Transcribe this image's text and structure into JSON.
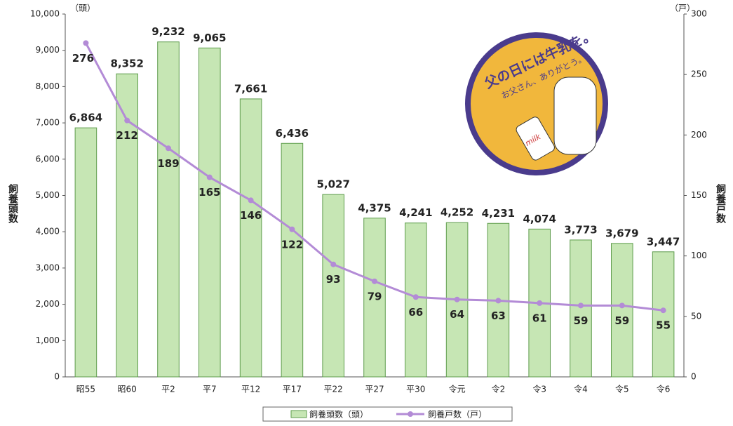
{
  "chart_data": {
    "type": "bar",
    "ylabel": "飼養頭数",
    "y2label": "飼養戸数",
    "y_unit": "（頭）",
    "y2_unit": "（戸）",
    "categories": [
      "昭55",
      "昭60",
      "平2",
      "平7",
      "平12",
      "平17",
      "平22",
      "平27",
      "平30",
      "令元",
      "令2",
      "令3",
      "令4",
      "令5",
      "令6"
    ],
    "series": [
      {
        "name": "飼養頭数（頭）",
        "type": "bar",
        "color": "#c6e6b4",
        "edge": "#5e9c4c",
        "values": [
          6864,
          8352,
          9232,
          9065,
          7661,
          6436,
          5027,
          4375,
          4241,
          4252,
          4231,
          4074,
          3773,
          3679,
          3447
        ],
        "value_labels": [
          "6,864",
          "8,352",
          "9,232",
          "9,065",
          "7,661",
          "6,436",
          "5,027",
          "4,375",
          "4,241",
          "4,252",
          "4,231",
          "4,074",
          "3,773",
          "3,679",
          "3,447"
        ]
      },
      {
        "name": "飼養戸数（戸）",
        "type": "line",
        "axis": "y2",
        "color": "#b38bd6",
        "values": [
          276,
          212,
          189,
          165,
          146,
          122,
          93,
          79,
          66,
          64,
          63,
          61,
          59,
          59,
          55
        ]
      }
    ],
    "ylim": [
      0,
      10000
    ],
    "yticks": [
      0,
      {
        "value": 1000,
        "label": "1,000"
      },
      {
        "value": 2000,
        "label": "2,000"
      },
      {
        "value": 3000,
        "label": "3,000"
      },
      {
        "value": 4000,
        "label": "4,000"
      },
      {
        "value": 5000,
        "label": "5,000"
      },
      {
        "value": 6000,
        "label": "6,000"
      },
      {
        "value": 7000,
        "label": "7,000"
      },
      {
        "value": 8000,
        "label": "8,000"
      },
      {
        "value": 9000,
        "label": "9,000"
      },
      {
        "value": 10000,
        "label": "10,000"
      }
    ],
    "y2lim": [
      0,
      300
    ],
    "y2ticks": [
      0,
      50,
      100,
      150,
      200,
      250,
      300
    ]
  },
  "illustration": {
    "title": "父の日には牛乳を。",
    "subtitle": "お父さん、ありがとう。",
    "bottle": "milk"
  }
}
